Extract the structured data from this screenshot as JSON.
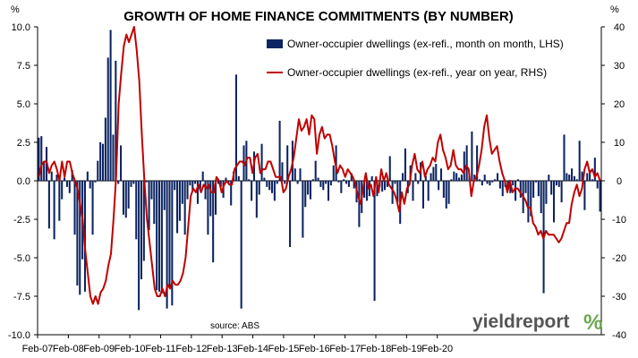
{
  "chart_data": {
    "type": "bar+line",
    "title": "GROWTH OF HOME FINANCE COMMITMENTS (BY NUMBER)",
    "source": "source: ABS",
    "left_axis": {
      "unit": "%",
      "range": [
        -10.0,
        10.0
      ],
      "ticks": [
        "10.0",
        "7.5",
        "5.0",
        "2.5",
        "0.0",
        "-2.5",
        "-5.0",
        "-7.5",
        "-10.0"
      ]
    },
    "right_axis": {
      "unit": "%",
      "range": [
        -40,
        40
      ],
      "ticks": [
        "40",
        "30",
        "20",
        "10",
        "0",
        "-10",
        "-20",
        "-30",
        "-40"
      ]
    },
    "x_ticks": [
      "Feb-07",
      "Feb-08",
      "Feb-09",
      "Feb-10",
      "Feb-11",
      "Feb-12",
      "Feb-13",
      "Feb-14",
      "Feb-15",
      "Feb-16",
      "Feb-17",
      "Feb-18",
      "Feb-19",
      "Feb-20"
    ],
    "x_start": "Feb-07",
    "series": [
      {
        "name": "Owner-occupier dwellings (ex-refi., month on month, LHS)",
        "type": "bar",
        "axis": "left",
        "color": "#0c2461",
        "values": [
          2.8,
          2.9,
          1.2,
          2.2,
          -3.1,
          0.6,
          -3.8,
          0.4,
          -2.6,
          -1.2,
          0.2,
          -0.4,
          -0.8,
          0.7,
          -3.5,
          -6.8,
          -7.4,
          -5.1,
          -7.2,
          0.6,
          -0.5,
          -3.5,
          -0.1,
          1.3,
          2.5,
          2.4,
          4.1,
          8.0,
          9.8,
          3.0,
          7.8,
          -0.2,
          2.3,
          -2.2,
          -2.4,
          -1.8,
          -0.4,
          -0.2,
          -3.8,
          -8.4,
          -6.4,
          -5.2,
          -0.1,
          -3.2,
          -1.2,
          -2.8,
          -7.1,
          -7.2,
          -7.3,
          -1.9,
          -8.3,
          -6.9,
          -8.1,
          -0.6,
          -3.4,
          -2.6,
          -1.5,
          -3.5,
          -1.2,
          -0.3,
          -0.6,
          -0.2,
          -1.5,
          -0.5,
          0.6,
          -1.2,
          -3.5,
          -2.3,
          -5.3,
          -2.2,
          -0.2,
          -0.4,
          -1.1,
          0.2,
          -0.2,
          -1.6,
          0.6,
          6.9,
          0.3,
          -8.3,
          2.3,
          2.6,
          0.1,
          -1.3,
          1.9,
          -2.4,
          -0.9,
          2.4,
          0.2,
          -0.4,
          -0.6,
          -0.8,
          -1.3,
          -0.2,
          3.9,
          1.2,
          -0.2,
          2.3,
          -4.3,
          2.6,
          0.8,
          -0.2,
          0.8,
          -3.7,
          -1.7,
          -0.9,
          -1.2,
          0.1,
          1.3,
          0.2,
          -0.4,
          -0.6,
          -0.2,
          -1.3,
          -0.3,
          1.0,
          2.3,
          -0.1,
          -0.8,
          0.1,
          -0.2,
          -0.4,
          0.5,
          -0.5,
          -1.4,
          -3.0,
          -2.1,
          -1.1,
          -1.3,
          -1.0,
          0.3,
          -7.8,
          -1.0,
          -0.4,
          -0.7,
          -0.6,
          -0.4,
          1.6,
          -1.5,
          -0.2,
          -1.4,
          -2.8,
          0.5,
          2.1,
          -0.8,
          1.0,
          -1.3,
          0.5,
          -0.2,
          1.2,
          -1.8,
          0.3,
          -1.3,
          0.5,
          0.9,
          1.1,
          -0.6,
          0.8,
          -1.1,
          -1.8,
          -1.5,
          0.1,
          0.6,
          0.5,
          0.2,
          0.4,
          1.9,
          2.3,
          0.3,
          3.2,
          0.4,
          2.3,
          0.1,
          -0.3,
          0.4,
          -0.2,
          -0.3,
          -0.1,
          0.1,
          0.5,
          -0.5,
          -1.0,
          -0.4,
          -0.6,
          -0.8,
          -0.3,
          -1.3,
          0.1,
          -1.1,
          -2.1,
          -0.8,
          -2.7,
          -2.3,
          -1.1,
          -0.1,
          -1.0,
          -2.1,
          -7.3,
          -1.5,
          0.4,
          -0.9,
          -2.7,
          -0.3,
          -0.4,
          -1.4,
          3.0,
          0.5,
          0.4,
          0.8,
          0.3,
          0.1,
          2.6,
          0.6,
          -1.9,
          0.5,
          0.7,
          0.1,
          1.5,
          -0.5,
          -2.0
        ]
      },
      {
        "name": "Owner-occupier dwellings (ex-refi., year on year, RHS)",
        "type": "line",
        "axis": "right",
        "color": "#c00000",
        "values": [
          1,
          4,
          5,
          5,
          2,
          4,
          5,
          3,
          0,
          5,
          1,
          5,
          5,
          2,
          0,
          -2,
          -6,
          -10,
          -18,
          -24,
          -30,
          -32,
          -30,
          -32,
          -29,
          -28,
          -26,
          -22,
          -19,
          -10,
          1,
          20,
          28,
          35,
          38,
          36,
          38,
          40,
          34,
          26,
          12,
          0,
          -10,
          -16,
          -22,
          -28,
          -30,
          -30,
          -28,
          -30,
          -27,
          -28,
          -26,
          -27,
          -27,
          -26,
          -24,
          -20,
          -12,
          -4,
          -2,
          -3,
          -1,
          -3,
          -1,
          -2,
          -1,
          -3,
          -3,
          1,
          0,
          -3,
          -1,
          0,
          -1,
          -1,
          3,
          4,
          5,
          5,
          4,
          6,
          6,
          2,
          6,
          7,
          2,
          3,
          3,
          5,
          5,
          3,
          1,
          1,
          1,
          -3,
          -2,
          1,
          3,
          6,
          11,
          16,
          13,
          14,
          16,
          12,
          17,
          16,
          7,
          12,
          14,
          11,
          12,
          12,
          9,
          5,
          2,
          4,
          3,
          1,
          3,
          2,
          1,
          -1,
          -4,
          -6,
          -2,
          2,
          -2,
          -1,
          -4,
          1,
          -3,
          3,
          0,
          2,
          -1,
          -2,
          -3,
          -5,
          -8,
          -3,
          -6,
          -2,
          -1,
          4,
          7,
          3,
          2,
          5,
          1,
          3,
          4,
          6,
          5,
          10,
          12,
          8,
          6,
          3,
          4,
          8,
          4,
          3,
          3,
          2,
          4,
          3,
          -4,
          0,
          1,
          4,
          8,
          14,
          17,
          11,
          7,
          8,
          9,
          5,
          2,
          0,
          -3,
          0,
          -3,
          -2,
          -2,
          -3,
          -4,
          -5,
          -7,
          -7,
          -11,
          -12,
          -14,
          -13,
          -15,
          -13,
          -14,
          -14,
          -14,
          -15,
          -16,
          -15,
          -13,
          -11,
          -11,
          -6,
          -3,
          -1,
          -4,
          -2,
          3,
          5,
          2,
          3,
          1,
          2,
          0
        ]
      }
    ],
    "legend_placement": "top-right",
    "grid": false,
    "logo": "yieldreport %"
  }
}
